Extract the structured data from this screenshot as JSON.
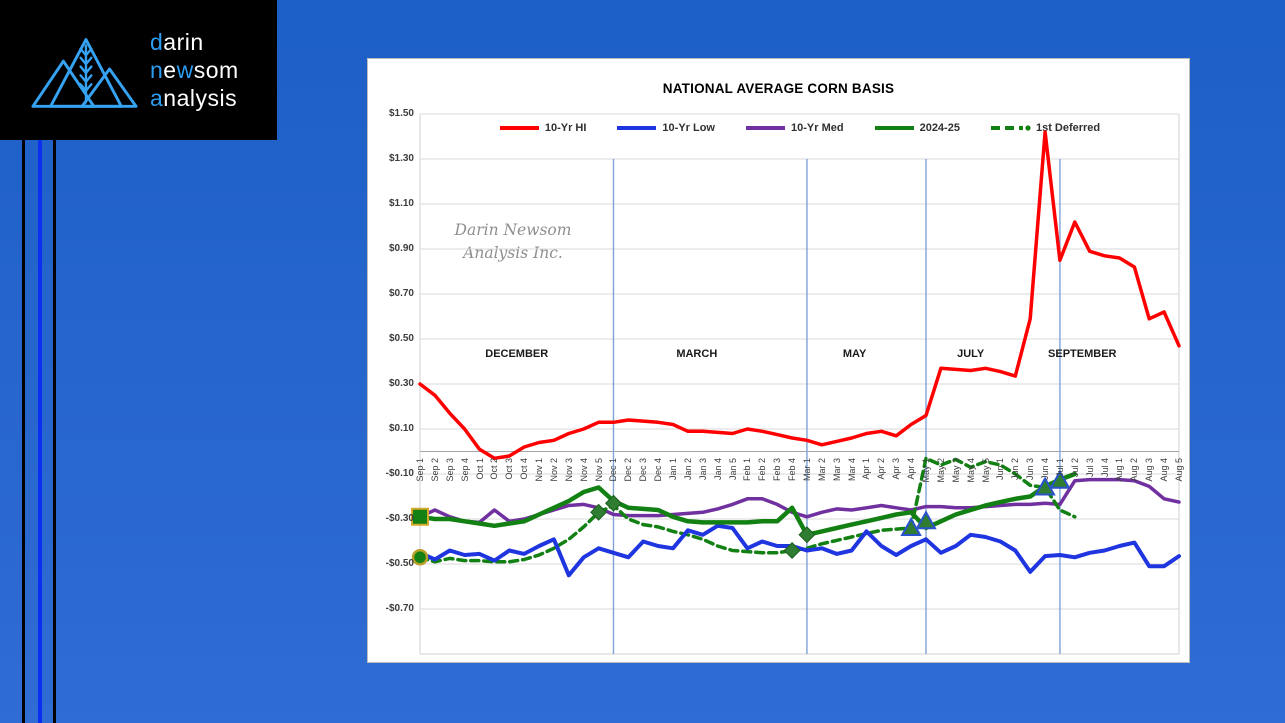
{
  "logo": {
    "lines": [
      {
        "segments": [
          {
            "t": "d",
            "c": "#2d9df2"
          },
          {
            "t": "arin",
            "c": "#ffffff"
          }
        ]
      },
      {
        "segments": [
          {
            "t": "n",
            "c": "#2d9df2"
          },
          {
            "t": "e",
            "c": "#ffffff"
          },
          {
            "t": "w",
            "c": "#2d9df2"
          },
          {
            "t": "som",
            "c": "#ffffff"
          }
        ]
      },
      {
        "segments": [
          {
            "t": "a",
            "c": "#2d9df2"
          },
          {
            "t": "nalysis",
            "c": "#ffffff"
          }
        ]
      }
    ],
    "mark_color": "#35a2f2"
  },
  "background": {
    "page_blue": "#2766cd",
    "stripe_black": "#000000",
    "stripe_blue": "#0b2ff0"
  },
  "chart": {
    "title": "NATIONAL AVERAGE CORN BASIS",
    "watermark_line1": "Darin Newsom",
    "watermark_line2": "Analysis Inc.",
    "y_axis_labels": [
      {
        "text": "$1.50",
        "value": 1.5
      },
      {
        "text": "$1.30",
        "value": 1.3
      },
      {
        "text": "$1.10",
        "value": 1.1
      },
      {
        "text": "$0.90",
        "value": 0.9
      },
      {
        "text": "$0.70",
        "value": 0.7
      },
      {
        "text": "$0.50",
        "value": 0.5
      },
      {
        "text": "$0.30",
        "value": 0.3
      },
      {
        "text": "$0.10",
        "value": 0.1
      },
      {
        "text": "-$0.10",
        "value": -0.1
      },
      {
        "text": "-$0.30",
        "value": -0.3
      },
      {
        "text": "-$0.50",
        "value": -0.5
      },
      {
        "text": "-$0.70",
        "value": -0.7
      }
    ],
    "month_labels": [
      {
        "text": "DECEMBER",
        "index": 6.5
      },
      {
        "text": "MARCH",
        "index": 18.6
      },
      {
        "text": "MAY",
        "index": 29.2
      },
      {
        "text": "JULY",
        "index": 37.0
      },
      {
        "text": "SEPTEMBER",
        "index": 44.5
      }
    ],
    "month_label_value": 0.42,
    "contract_lines": {
      "at_categories": [
        "Dec 1",
        "Mar 1",
        "May 1",
        "Jul 1"
      ],
      "color": "#7da3d8",
      "top_value": 1.3
    },
    "grid_color": "#d9d9d9",
    "axis_color": "#a6a6a6"
  },
  "chart_data": {
    "type": "line",
    "title": "NATIONAL AVERAGE CORN BASIS",
    "xlabel": "",
    "ylabel": "",
    "ylim": [
      -0.9,
      1.5
    ],
    "grid": true,
    "legend_position": "top",
    "categories": [
      "Sep 1",
      "Sep 2",
      "Sep 3",
      "Sep 4",
      "Oct 1",
      "Oct 2",
      "Oct 3",
      "Oct 4",
      "Nov 1",
      "Nov 2",
      "Nov 3",
      "Nov 4",
      "Nov 5",
      "Dec 1",
      "Dec 2",
      "Dec 3",
      "Dec 4",
      "Jan 1",
      "Jan 2",
      "Jan 3",
      "Jan 4",
      "Jan 5",
      "Feb 1",
      "Feb 2",
      "Feb 3",
      "Feb 4",
      "Mar 1",
      "Mar 2",
      "Mar 3",
      "Mar 4",
      "Apr 1",
      "Apr 2",
      "Apr 3",
      "Apr 4",
      "May 1",
      "May 2",
      "May 3",
      "May 4",
      "May 5",
      "Jun 1",
      "Jun 2",
      "Jun 3",
      "Jun 4",
      "Jul 1",
      "Jul 2",
      "Jul 3",
      "Jul 4",
      "Aug 1",
      "Aug 2",
      "Aug 3",
      "Aug 4",
      "Aug 5"
    ],
    "series": [
      {
        "name": "10-Yr HI",
        "color": "#ff0000",
        "dash": false,
        "width": 3.5,
        "values": [
          0.3,
          0.25,
          0.17,
          0.1,
          0.01,
          -0.03,
          -0.02,
          0.02,
          0.04,
          0.05,
          0.08,
          0.1,
          0.13,
          0.13,
          0.14,
          0.135,
          0.13,
          0.12,
          0.09,
          0.09,
          0.085,
          0.08,
          0.1,
          0.09,
          0.075,
          0.06,
          0.05,
          0.03,
          0.045,
          0.06,
          0.08,
          0.09,
          0.07,
          0.12,
          0.16,
          0.37,
          0.365,
          0.36,
          0.37,
          0.355,
          0.335,
          0.59,
          1.42,
          0.85,
          1.02,
          0.89,
          0.87,
          0.86,
          0.82,
          0.59,
          0.62,
          0.47
        ]
      },
      {
        "name": "10-Yr Low",
        "color": "#1f35e0",
        "dash": false,
        "width": 4,
        "values": [
          -0.45,
          -0.48,
          -0.44,
          -0.46,
          -0.455,
          -0.485,
          -0.44,
          -0.455,
          -0.42,
          -0.39,
          -0.55,
          -0.47,
          -0.43,
          -0.45,
          -0.47,
          -0.4,
          -0.42,
          -0.43,
          -0.35,
          -0.37,
          -0.33,
          -0.34,
          -0.43,
          -0.4,
          -0.42,
          -0.42,
          -0.44,
          -0.43,
          -0.455,
          -0.44,
          -0.355,
          -0.42,
          -0.46,
          -0.42,
          -0.39,
          -0.45,
          -0.42,
          -0.37,
          -0.38,
          -0.4,
          -0.44,
          -0.535,
          -0.465,
          -0.46,
          -0.47,
          -0.45,
          -0.44,
          -0.42,
          -0.405,
          -0.51,
          -0.51,
          -0.465
        ]
      },
      {
        "name": "10-Yr Med",
        "color": "#7030a0",
        "dash": false,
        "width": 3.5,
        "values": [
          -0.29,
          -0.26,
          -0.29,
          -0.31,
          -0.315,
          -0.26,
          -0.31,
          -0.3,
          -0.28,
          -0.26,
          -0.24,
          -0.235,
          -0.25,
          -0.28,
          -0.285,
          -0.285,
          -0.285,
          -0.28,
          -0.275,
          -0.27,
          -0.255,
          -0.235,
          -0.21,
          -0.21,
          -0.235,
          -0.27,
          -0.29,
          -0.27,
          -0.255,
          -0.26,
          -0.25,
          -0.24,
          -0.25,
          -0.26,
          -0.245,
          -0.245,
          -0.25,
          -0.25,
          -0.245,
          -0.24,
          -0.235,
          -0.235,
          -0.23,
          -0.235,
          -0.13,
          -0.125,
          -0.125,
          -0.125,
          -0.13,
          -0.155,
          -0.21,
          -0.225
        ]
      },
      {
        "name": "2024-25",
        "color": "#128012",
        "dash": false,
        "width": 4.5,
        "values": [
          -0.29,
          -0.3,
          -0.3,
          -0.31,
          -0.32,
          -0.33,
          -0.32,
          -0.31,
          -0.28,
          -0.25,
          -0.22,
          -0.18,
          -0.16,
          -0.22,
          -0.25,
          -0.255,
          -0.26,
          -0.29,
          -0.31,
          -0.315,
          -0.315,
          -0.315,
          -0.315,
          -0.31,
          -0.31,
          -0.25,
          -0.37,
          -0.355,
          -0.34,
          -0.325,
          -0.31,
          -0.295,
          -0.28,
          -0.27,
          -0.34,
          -0.31,
          -0.28,
          -0.26,
          -0.24,
          -0.225,
          -0.21,
          -0.2,
          -0.155,
          -0.125,
          -0.1
        ]
      },
      {
        "name": "1st Deferred",
        "color": "#128012",
        "dash": true,
        "width": 3.5,
        "values": [
          -0.47,
          -0.49,
          -0.475,
          -0.485,
          -0.485,
          -0.49,
          -0.49,
          -0.48,
          -0.46,
          -0.43,
          -0.39,
          -0.335,
          -0.27,
          -0.24,
          -0.3,
          -0.325,
          -0.335,
          -0.355,
          -0.37,
          -0.39,
          -0.42,
          -0.44,
          -0.445,
          -0.45,
          -0.45,
          -0.44,
          -0.43,
          -0.41,
          -0.395,
          -0.38,
          -0.365,
          -0.35,
          -0.345,
          -0.34,
          -0.03,
          -0.06,
          -0.035,
          -0.07,
          -0.045,
          -0.06,
          -0.1,
          -0.15,
          -0.16,
          -0.26,
          -0.29
        ]
      }
    ],
    "markers": [
      {
        "shape": "square",
        "category": "Sep 1",
        "value": -0.29,
        "fill": "#128012",
        "stroke": "#d4a92a"
      },
      {
        "shape": "circle",
        "category": "Sep 1",
        "value": -0.47,
        "fill": "#128012",
        "stroke": "#b8a02a"
      },
      {
        "shape": "diamond",
        "category": "Nov 5",
        "value": -0.27,
        "fill": "#2e7d32",
        "stroke": "#1b5e20"
      },
      {
        "shape": "diamond",
        "category": "Dec 1",
        "value": -0.23,
        "fill": "#2e7d32",
        "stroke": "#1b5e20"
      },
      {
        "shape": "diamond",
        "category": "Feb 4",
        "value": -0.44,
        "fill": "#2e7d32",
        "stroke": "#1b5e20"
      },
      {
        "shape": "diamond",
        "category": "Mar 1",
        "value": -0.37,
        "fill": "#2e7d32",
        "stroke": "#1b5e20"
      },
      {
        "shape": "triangle",
        "category": "Apr 4",
        "value": -0.34,
        "fill": "#2e7d32",
        "stroke": "#2a52cc"
      },
      {
        "shape": "triangle",
        "category": "May 1",
        "value": -0.31,
        "fill": "#2e7d32",
        "stroke": "#2a52cc"
      },
      {
        "shape": "triangle",
        "category": "Jun 4",
        "value": -0.16,
        "fill": "#2e7d32",
        "stroke": "#2a52cc"
      },
      {
        "shape": "triangle",
        "category": "Jul 1",
        "value": -0.13,
        "fill": "#2e7d32",
        "stroke": "#2a52cc"
      }
    ]
  }
}
